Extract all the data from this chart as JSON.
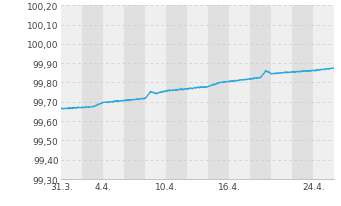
{
  "ylim": [
    99.3,
    100.2
  ],
  "yticks": [
    99.3,
    99.4,
    99.5,
    99.6,
    99.7,
    99.8,
    99.9,
    100.0,
    100.1,
    100.2
  ],
  "ytick_labels": [
    "99,30",
    "99,40",
    "99,50",
    "99,60",
    "99,70",
    "99,80",
    "99,90",
    "100,00",
    "100,10",
    "100,20"
  ],
  "xtick_labels": [
    "31.3.",
    "4.4.",
    "10.4.",
    "16.4.",
    "24.4."
  ],
  "xtick_pos": [
    0,
    4,
    10,
    16,
    24
  ],
  "xlim": [
    0,
    26
  ],
  "line_color": "#29a8e0",
  "bg_color": "#ffffff",
  "band_light": "#efefef",
  "band_dark": "#e0e0e0",
  "grid_color": "#cccccc",
  "key_x": [
    0,
    0.5,
    1,
    2,
    3,
    4,
    5,
    6,
    7,
    8,
    8.5,
    9,
    9.3,
    9.7,
    10,
    11,
    12,
    13,
    14,
    15,
    16,
    17,
    18,
    19,
    19.5,
    20,
    21,
    22,
    23,
    24,
    25,
    26
  ],
  "key_y": [
    99.665,
    99.666,
    99.668,
    99.671,
    99.674,
    99.697,
    99.702,
    99.707,
    99.712,
    99.718,
    99.753,
    99.743,
    99.748,
    99.752,
    99.757,
    99.762,
    99.768,
    99.774,
    99.779,
    99.799,
    99.806,
    99.812,
    99.819,
    99.825,
    99.862,
    99.845,
    99.85,
    99.855,
    99.858,
    99.862,
    99.868,
    99.875
  ]
}
